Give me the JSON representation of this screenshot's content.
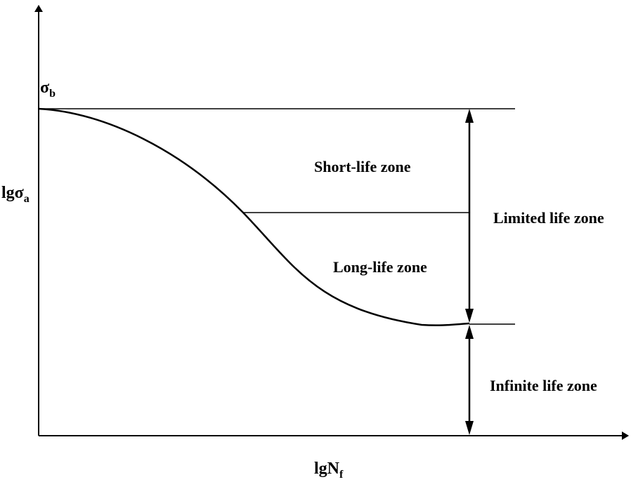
{
  "labels": {
    "y_axis": {
      "main": "lgσ",
      "sub": "a"
    },
    "x_axis": {
      "main": "lgN",
      "sub": "f"
    },
    "sigma_b": {
      "main": "σ",
      "sub": "b"
    },
    "short_life_zone": "Short-life zone",
    "long_life_zone": "Long-life zone",
    "limited_life_zone": "Limited life zone",
    "infinite_life_zone": "Infinite life zone"
  },
  "colors": {
    "line": "#000000",
    "background": "#ffffff"
  }
}
